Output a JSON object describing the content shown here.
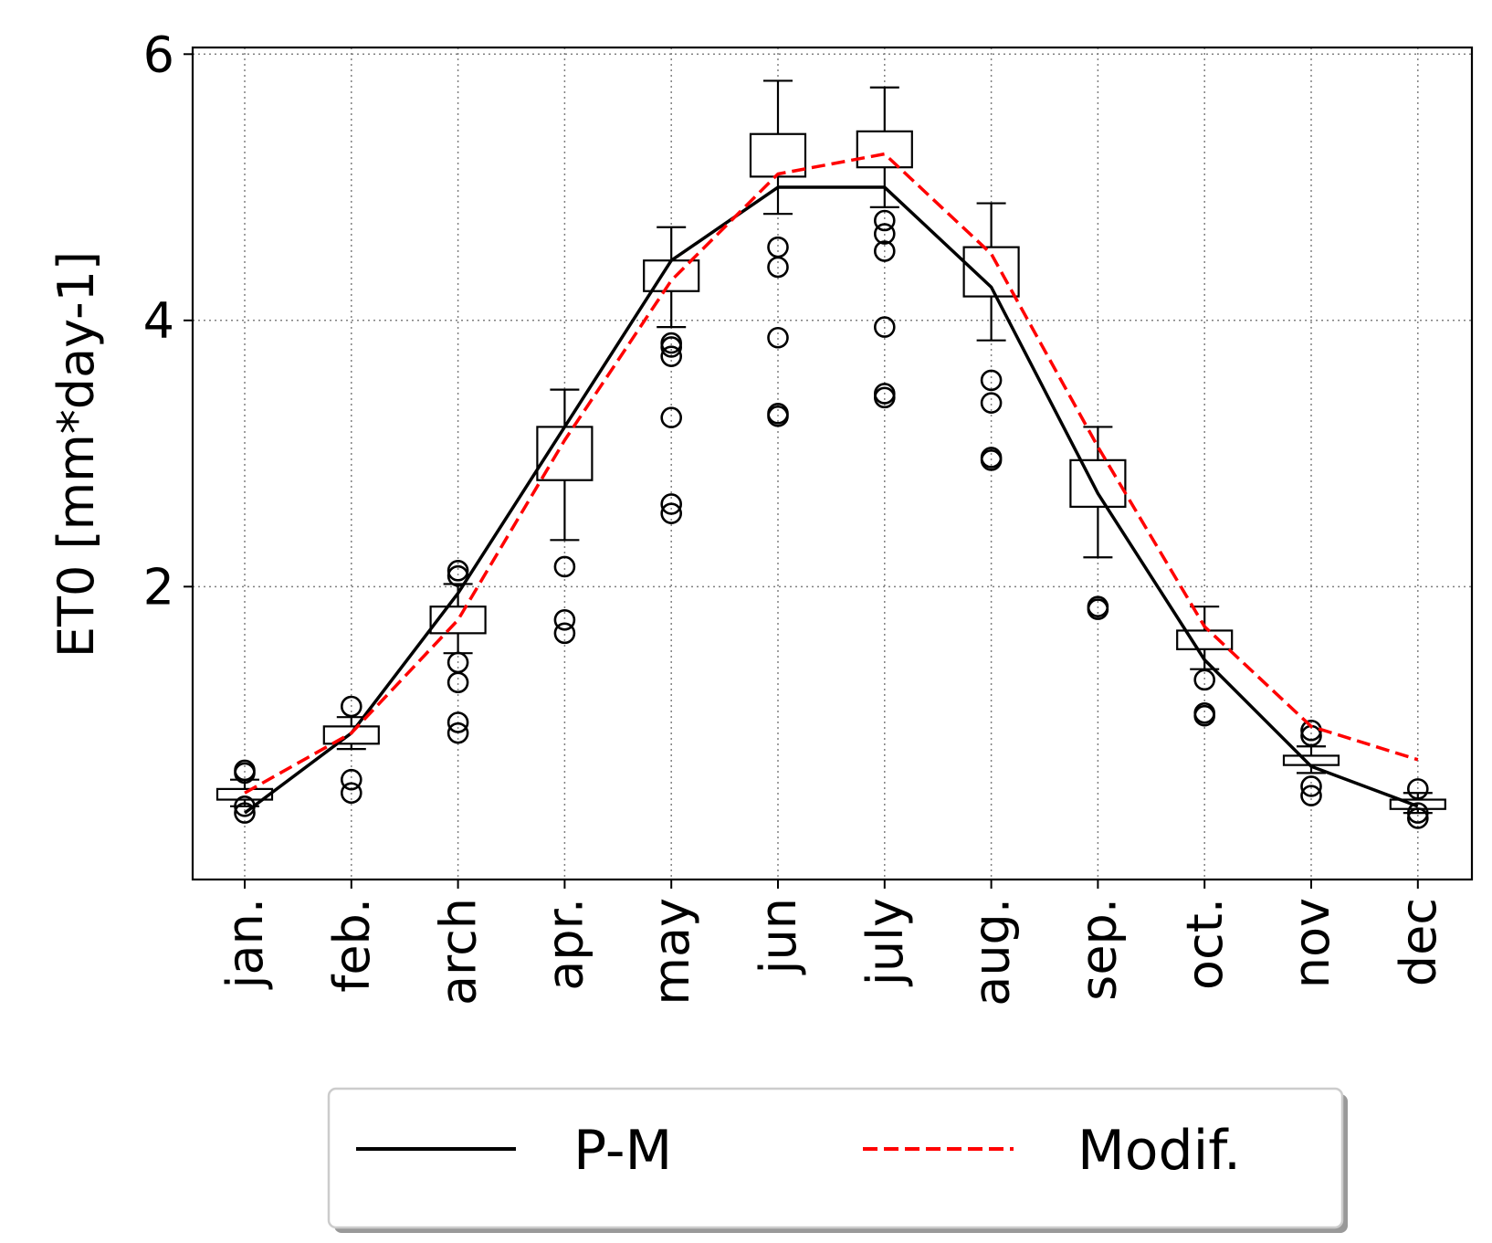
{
  "chart_data": {
    "type": "box",
    "ylabel": "ET0 [mm*day-1]",
    "xlabel": "",
    "ylim": [
      -0.2,
      6.05
    ],
    "yticks": [
      2,
      4,
      6
    ],
    "grid": true,
    "legend_placement": "bottom-center",
    "categories": [
      "jan.",
      "feb.",
      "arch",
      "apr.",
      "may",
      "jun",
      "july",
      "aug.",
      "sep.",
      "oct.",
      "nov",
      "dec"
    ],
    "series": [
      {
        "name": "P-M",
        "style": "solid",
        "color": "#000000",
        "values": [
          0.3,
          0.9,
          1.95,
          3.2,
          4.45,
          5.0,
          5.0,
          4.25,
          2.7,
          1.45,
          0.65,
          0.35
        ]
      },
      {
        "name": "Modif.",
        "style": "dashed",
        "color": "#ff0000",
        "values": [
          0.45,
          0.9,
          1.75,
          3.1,
          4.3,
          5.1,
          5.25,
          4.5,
          3.05,
          1.7,
          0.95,
          0.7
        ]
      }
    ],
    "boxes": [
      {
        "whisker_low": 0.35,
        "q1": 0.4,
        "median": 0.45,
        "q3": 0.48,
        "whisker_high": 0.55,
        "outliers": [
          0.3,
          0.35,
          0.6,
          0.62
        ]
      },
      {
        "whisker_low": 0.78,
        "q1": 0.82,
        "median": 0.9,
        "q3": 0.95,
        "whisker_high": 1.02,
        "outliers": [
          0.45,
          0.55,
          1.1
        ]
      },
      {
        "whisker_low": 1.5,
        "q1": 1.65,
        "median": 1.8,
        "q3": 1.85,
        "whisker_high": 2.02,
        "outliers": [
          0.9,
          0.98,
          1.28,
          1.43,
          2.08,
          2.12
        ]
      },
      {
        "whisker_low": 2.35,
        "q1": 2.8,
        "median": 3.0,
        "q3": 3.2,
        "whisker_high": 3.48,
        "outliers": [
          1.65,
          1.75,
          2.15
        ]
      },
      {
        "whisker_low": 3.95,
        "q1": 4.22,
        "median": 4.3,
        "q3": 4.45,
        "whisker_high": 4.7,
        "outliers": [
          2.55,
          2.62,
          3.27,
          3.73,
          3.8,
          3.83
        ]
      },
      {
        "whisker_low": 4.8,
        "q1": 5.08,
        "median": 5.25,
        "q3": 5.4,
        "whisker_high": 5.8,
        "outliers": [
          3.28,
          3.3,
          3.87,
          4.4,
          4.55
        ]
      },
      {
        "whisker_low": 4.85,
        "q1": 5.15,
        "median": 5.25,
        "q3": 5.42,
        "whisker_high": 5.75,
        "outliers": [
          3.42,
          3.45,
          3.95,
          4.52,
          4.65,
          4.75
        ]
      },
      {
        "whisker_low": 3.85,
        "q1": 4.18,
        "median": 4.32,
        "q3": 4.55,
        "whisker_high": 4.88,
        "outliers": [
          2.95,
          2.97,
          3.38,
          3.55
        ]
      },
      {
        "whisker_low": 2.22,
        "q1": 2.6,
        "median": 2.75,
        "q3": 2.95,
        "whisker_high": 3.2,
        "outliers": [
          1.83,
          1.85
        ]
      },
      {
        "whisker_low": 1.38,
        "q1": 1.53,
        "median": 1.6,
        "q3": 1.67,
        "whisker_high": 1.85,
        "outliers": [
          1.03,
          1.05,
          1.3
        ]
      },
      {
        "whisker_low": 0.6,
        "q1": 0.66,
        "median": 0.7,
        "q3": 0.73,
        "whisker_high": 0.8,
        "outliers": [
          0.43,
          0.5,
          0.88,
          0.92
        ]
      },
      {
        "whisker_low": 0.3,
        "q1": 0.33,
        "median": 0.36,
        "q3": 0.4,
        "whisker_high": 0.45,
        "outliers": [
          0.26,
          0.3,
          0.48
        ]
      }
    ]
  }
}
